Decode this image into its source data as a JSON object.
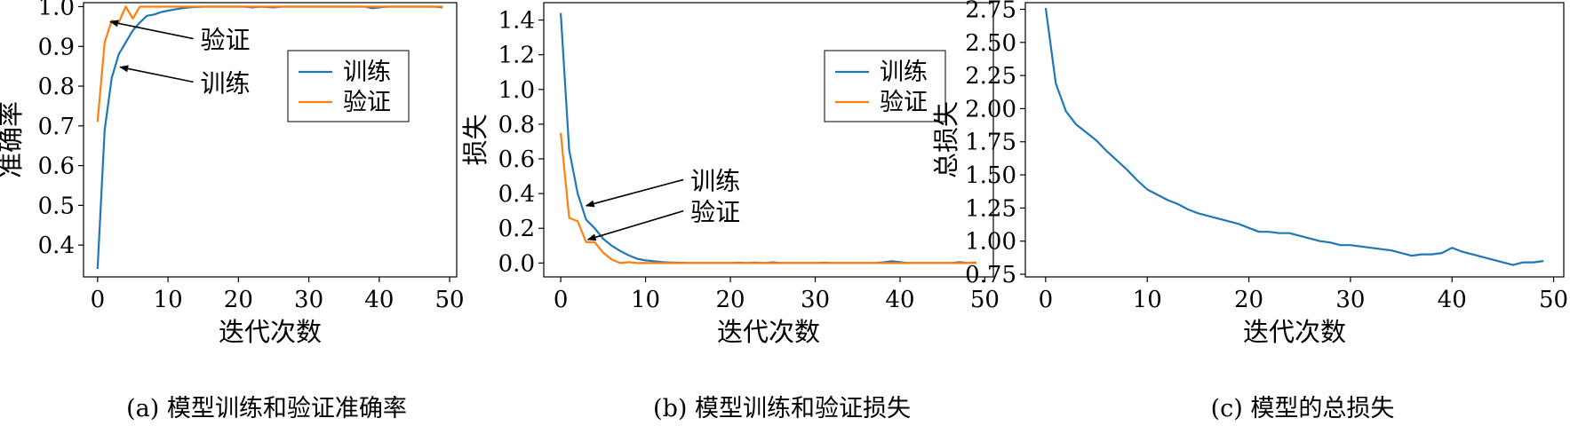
{
  "colors": {
    "train": "#1f77b4",
    "val": "#ff7f0e",
    "total": "#1f77b4"
  },
  "captions": [
    "(a) 模型训练和验证准确率",
    "(b) 模型训练和验证损失",
    "(c) 模型的总损失"
  ],
  "chart_data": [
    {
      "type": "line",
      "title": "",
      "xlabel": "迭代次数",
      "ylabel": "准确率",
      "xlim": [
        -2,
        51
      ],
      "ylim": [
        0.32,
        1.01
      ],
      "xticks": [
        0,
        10,
        20,
        30,
        40,
        50
      ],
      "yticks": [
        0.4,
        0.5,
        0.6,
        0.7,
        0.8,
        0.9,
        1.0
      ],
      "ytick_labels": [
        "0.4",
        "0.5",
        "0.6",
        "0.7",
        "0.8",
        "0.9",
        "1.0"
      ],
      "legend": {
        "placement": "upper-right",
        "entries": [
          "训练",
          "验证"
        ]
      },
      "grid": false,
      "series": [
        {
          "name": "训练",
          "x": [
            0,
            1,
            2,
            3,
            4,
            5,
            6,
            7,
            8,
            9,
            10,
            11,
            12,
            13,
            14,
            15,
            16,
            17,
            18,
            19,
            20,
            21,
            22,
            23,
            24,
            25,
            26,
            27,
            28,
            29,
            30,
            31,
            32,
            33,
            34,
            35,
            36,
            37,
            38,
            39,
            40,
            41,
            42,
            43,
            44,
            45,
            46,
            47,
            48,
            49
          ],
          "values": [
            0.34,
            0.69,
            0.82,
            0.88,
            0.91,
            0.94,
            0.96,
            0.977,
            0.98,
            0.986,
            0.99,
            0.993,
            0.996,
            0.998,
            0.999,
            1.0,
            1.0,
            1.0,
            1.0,
            1.0,
            1.0,
            1.0,
            0.998,
            1.0,
            0.999,
            0.998,
            1.0,
            1.0,
            1.0,
            1.0,
            1.0,
            1.0,
            1.0,
            1.0,
            1.0,
            1.0,
            1.0,
            1.0,
            1.0,
            0.996,
            0.998,
            1.0,
            1.0,
            1.0,
            1.0,
            1.0,
            1.0,
            1.0,
            1.0,
            0.998
          ]
        },
        {
          "name": "验证",
          "x": [
            0,
            1,
            2,
            3,
            4,
            5,
            6,
            7,
            8,
            9,
            10,
            11,
            12,
            13,
            14,
            15,
            16,
            17,
            18,
            19,
            20,
            21,
            22,
            23,
            24,
            25,
            26,
            27,
            28,
            29,
            30,
            31,
            32,
            33,
            34,
            35,
            36,
            37,
            38,
            39,
            40,
            41,
            42,
            43,
            44,
            45,
            46,
            47,
            48,
            49
          ],
          "values": [
            0.71,
            0.91,
            0.965,
            0.96,
            1.0,
            0.97,
            1.0,
            1.0,
            1.0,
            1.0,
            1.0,
            1.0,
            1.0,
            1.0,
            1.0,
            1.0,
            1.0,
            1.0,
            1.0,
            1.0,
            1.0,
            1.0,
            1.0,
            1.0,
            1.0,
            1.0,
            1.0,
            1.0,
            1.0,
            1.0,
            1.0,
            1.0,
            1.0,
            1.0,
            1.0,
            1.0,
            1.0,
            1.0,
            1.0,
            1.0,
            1.0,
            1.0,
            1.0,
            1.0,
            1.0,
            1.0,
            1.0,
            1.0,
            1.0,
            1.0
          ]
        }
      ],
      "annotations": [
        {
          "text": "验证",
          "x_text": 14.6,
          "y_text": 0.915,
          "x_arrow": 1.8,
          "y_arrow": 0.962
        },
        {
          "text": "训练",
          "x_text": 14.6,
          "y_text": 0.806,
          "x_arrow": 3.2,
          "y_arrow": 0.848
        }
      ]
    },
    {
      "type": "line",
      "title": "",
      "xlabel": "迭代次数",
      "ylabel": "损失",
      "xlim": [
        -2,
        51
      ],
      "ylim": [
        -0.08,
        1.5
      ],
      "xticks": [
        0,
        10,
        20,
        30,
        40,
        50
      ],
      "yticks": [
        0.0,
        0.2,
        0.4,
        0.6,
        0.8,
        1.0,
        1.2,
        1.4
      ],
      "ytick_labels": [
        "0.0",
        "0.2",
        "0.4",
        "0.6",
        "0.8",
        "1.0",
        "1.2",
        "1.4"
      ],
      "legend": {
        "placement": "upper-right",
        "entries": [
          "训练",
          "验证"
        ]
      },
      "grid": false,
      "series": [
        {
          "name": "训练",
          "x": [
            0,
            1,
            2,
            3,
            4,
            5,
            6,
            7,
            8,
            9,
            10,
            11,
            12,
            13,
            14,
            15,
            16,
            17,
            18,
            19,
            20,
            21,
            22,
            23,
            24,
            25,
            26,
            27,
            28,
            29,
            30,
            31,
            32,
            33,
            34,
            35,
            36,
            37,
            38,
            39,
            40,
            41,
            42,
            43,
            44,
            45,
            46,
            47,
            48,
            49
          ],
          "values": [
            1.44,
            0.65,
            0.4,
            0.25,
            0.2,
            0.14,
            0.1,
            0.07,
            0.045,
            0.025,
            0.015,
            0.01,
            0.005,
            0.003,
            0.002,
            0.0,
            0.0,
            0.0,
            0.0,
            0.0,
            0.0,
            0.002,
            0.0,
            0.003,
            0.0,
            0.004,
            0.0,
            0.0,
            0.0,
            0.0,
            0.0,
            0.002,
            0.0,
            0.0,
            0.0,
            0.0,
            0.0,
            0.0,
            0.004,
            0.01,
            0.005,
            0.0,
            0.0,
            0.0,
            0.0,
            0.0,
            0.0,
            0.005,
            0.0,
            0.003
          ]
        },
        {
          "name": "验证",
          "x": [
            0,
            1,
            2,
            3,
            4,
            5,
            6,
            7,
            8,
            9,
            10,
            11,
            12,
            13,
            14,
            15,
            16,
            17,
            18,
            19,
            20,
            21,
            22,
            23,
            24,
            25,
            26,
            27,
            28,
            29,
            30,
            31,
            32,
            33,
            34,
            35,
            36,
            37,
            38,
            39,
            40,
            41,
            42,
            43,
            44,
            45,
            46,
            47,
            48,
            49
          ],
          "values": [
            0.75,
            0.26,
            0.24,
            0.12,
            0.12,
            0.06,
            0.02,
            0.0,
            0.005,
            0.0,
            0.0,
            0.0,
            0.0,
            0.0,
            0.0,
            0.0,
            0.0,
            0.0,
            0.0,
            0.0,
            0.0,
            0.0,
            0.0,
            0.0,
            0.0,
            0.0,
            0.0,
            0.0,
            0.0,
            0.0,
            0.0,
            0.0,
            0.0,
            0.0,
            0.0,
            0.0,
            0.0,
            0.0,
            0.0,
            0.0,
            0.0,
            0.0,
            0.0,
            0.0,
            0.0,
            0.0,
            0.0,
            0.0,
            0.0,
            0.0
          ]
        }
      ],
      "annotations": [
        {
          "text": "训练",
          "x_text": 15.3,
          "y_text": 0.47,
          "x_arrow": 3.0,
          "y_arrow": 0.33
        },
        {
          "text": "验证",
          "x_text": 15.3,
          "y_text": 0.29,
          "x_arrow": 3.2,
          "y_arrow": 0.135
        }
      ]
    },
    {
      "type": "line",
      "title": "",
      "xlabel": "迭代次数",
      "ylabel": "总损失",
      "xlim": [
        -2,
        51
      ],
      "ylim": [
        0.73,
        2.8
      ],
      "xticks": [
        0,
        10,
        20,
        30,
        40,
        50
      ],
      "yticks": [
        0.75,
        1.0,
        1.25,
        1.5,
        1.75,
        2.0,
        2.25,
        2.5,
        2.75
      ],
      "ytick_labels": [
        "0.75",
        "1.00",
        "1.25",
        "1.50",
        "1.75",
        "2.00",
        "2.25",
        "2.50",
        "2.75"
      ],
      "legend": null,
      "grid": false,
      "series": [
        {
          "x": [
            0,
            1,
            2,
            3,
            4,
            5,
            6,
            7,
            8,
            9,
            10,
            11,
            12,
            13,
            14,
            15,
            16,
            17,
            18,
            19,
            20,
            21,
            22,
            23,
            24,
            25,
            26,
            27,
            28,
            29,
            30,
            31,
            32,
            33,
            34,
            35,
            36,
            37,
            38,
            39,
            40,
            41,
            42,
            43,
            44,
            45,
            46,
            47,
            48,
            49
          ],
          "values": [
            2.76,
            2.19,
            1.98,
            1.88,
            1.82,
            1.76,
            1.68,
            1.61,
            1.54,
            1.46,
            1.39,
            1.35,
            1.31,
            1.28,
            1.24,
            1.21,
            1.19,
            1.17,
            1.15,
            1.13,
            1.1,
            1.07,
            1.07,
            1.06,
            1.06,
            1.04,
            1.02,
            1.0,
            0.99,
            0.97,
            0.97,
            0.96,
            0.95,
            0.94,
            0.93,
            0.91,
            0.89,
            0.9,
            0.9,
            0.91,
            0.95,
            0.92,
            0.9,
            0.88,
            0.86,
            0.84,
            0.82,
            0.84,
            0.84,
            0.85
          ]
        }
      ],
      "annotations": []
    }
  ]
}
